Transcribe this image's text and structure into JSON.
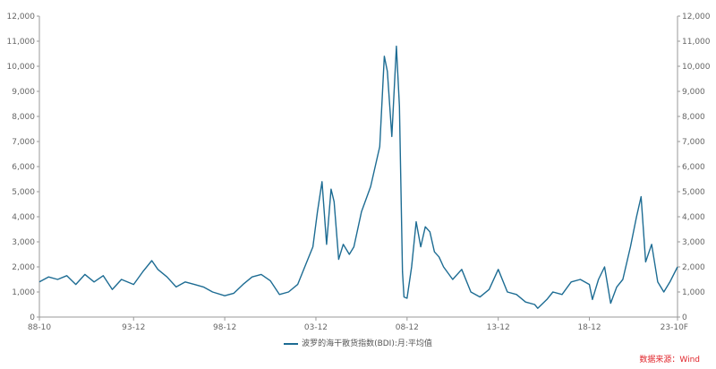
{
  "chart_data": {
    "type": "line",
    "title": "",
    "xlabel": "",
    "ylabel": "",
    "ylim": [
      0,
      12000
    ],
    "y_ticks": [
      "0",
      "1,000",
      "2,000",
      "3,000",
      "4,000",
      "5,000",
      "6,000",
      "7,000",
      "8,000",
      "9,000",
      "10,000",
      "11,000",
      "12,000"
    ],
    "x_tick_labels": [
      "88-10",
      "93-12",
      "98-12",
      "03-12",
      "08-12",
      "13-12",
      "18-12",
      "23-10F"
    ],
    "grid": false,
    "legend_position": "bottom",
    "dual_y_axis": true,
    "series": [
      {
        "name": "波罗的海干散货指数(BDI):月:平均值",
        "color": "#1d6c93",
        "x": [
          "1988-10",
          "1989-04",
          "1989-10",
          "1990-04",
          "1990-10",
          "1991-04",
          "1991-10",
          "1992-04",
          "1992-10",
          "1993-04",
          "1993-12",
          "1994-06",
          "1994-12",
          "1995-04",
          "1995-10",
          "1996-04",
          "1996-10",
          "1997-04",
          "1997-10",
          "1998-04",
          "1998-12",
          "1999-06",
          "1999-12",
          "2000-06",
          "2000-12",
          "2001-06",
          "2001-12",
          "2002-06",
          "2002-12",
          "2003-06",
          "2003-10",
          "2004-01",
          "2004-04",
          "2004-07",
          "2004-10",
          "2004-12",
          "2005-03",
          "2005-06",
          "2005-10",
          "2006-01",
          "2006-06",
          "2006-12",
          "2007-03",
          "2007-06",
          "2007-09",
          "2007-11",
          "2008-02",
          "2008-05",
          "2008-07",
          "2008-09",
          "2008-10",
          "2008-12",
          "2009-03",
          "2009-06",
          "2009-09",
          "2009-12",
          "2010-03",
          "2010-06",
          "2010-09",
          "2010-12",
          "2011-06",
          "2011-12",
          "2012-06",
          "2012-12",
          "2013-06",
          "2013-12",
          "2014-06",
          "2014-12",
          "2015-06",
          "2015-12",
          "2016-02",
          "2016-08",
          "2016-12",
          "2017-06",
          "2017-12",
          "2018-06",
          "2018-12",
          "2019-02",
          "2019-06",
          "2019-10",
          "2020-02",
          "2020-06",
          "2020-10",
          "2021-03",
          "2021-07",
          "2021-10",
          "2022-01",
          "2022-05",
          "2022-09",
          "2023-01",
          "2023-05",
          "2023-10"
        ],
        "values": [
          1400,
          1600,
          1500,
          1650,
          1300,
          1700,
          1400,
          1650,
          1100,
          1500,
          1300,
          1800,
          2250,
          1900,
          1600,
          1200,
          1400,
          1300,
          1200,
          1000,
          850,
          950,
          1300,
          1600,
          1700,
          1450,
          900,
          1000,
          1300,
          2200,
          2800,
          4200,
          5400,
          2900,
          5100,
          4600,
          2300,
          2900,
          2500,
          2800,
          4200,
          5200,
          6000,
          6800,
          10400,
          9800,
          7200,
          10800,
          8400,
          1800,
          800,
          750,
          2000,
          3800,
          2800,
          3600,
          3400,
          2600,
          2400,
          2000,
          1500,
          1900,
          1000,
          800,
          1100,
          1900,
          1000,
          900,
          600,
          500,
          350,
          700,
          1000,
          900,
          1400,
          1500,
          1300,
          700,
          1500,
          2000,
          550,
          1200,
          1500,
          2800,
          4000,
          4800,
          2200,
          2900,
          1400,
          1000,
          1400,
          2000
        ]
      }
    ]
  },
  "legend": {
    "label": "波罗的海干散货指数(BDI):月:平均值"
  },
  "source": {
    "text": "数据来源：Wind"
  }
}
